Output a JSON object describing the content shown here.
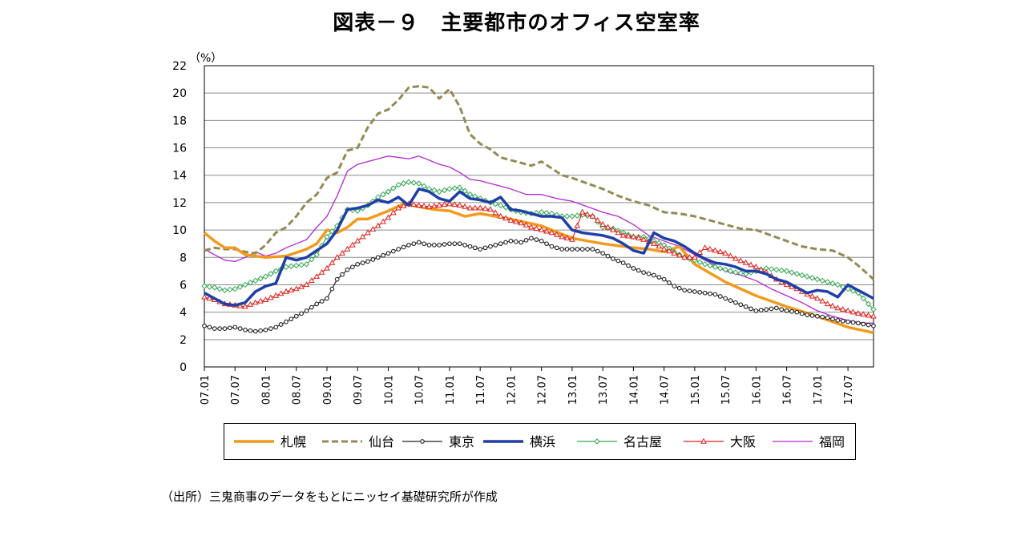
{
  "chart_data": {
    "type": "line",
    "title": "図表－９　主要都市のオフィス空室率",
    "ylabel": "（%）",
    "xlabel": "",
    "ylim": [
      0,
      22
    ],
    "yticks": [
      0,
      2,
      4,
      6,
      8,
      10,
      12,
      14,
      16,
      18,
      20,
      22
    ],
    "xlim": [
      2007.0,
      2017.917
    ],
    "xticks": [
      "07.01",
      "07.07",
      "08.01",
      "08.07",
      "09.01",
      "09.07",
      "10.01",
      "10.07",
      "11.01",
      "11.07",
      "12.01",
      "12.07",
      "13.01",
      "13.07",
      "14.01",
      "14.07",
      "15.01",
      "15.07",
      "16.01",
      "16.07",
      "17.01",
      "17.07"
    ],
    "grid": "horizontal",
    "legend_position": "bottom",
    "series": [
      {
        "name": "札幌",
        "color": "#f29a1d",
        "style": "thick",
        "x": [
          "07.01",
          "07.03",
          "07.05",
          "07.07",
          "07.09",
          "08.01",
          "08.05",
          "08.09",
          "08.11",
          "09.01",
          "09.03",
          "09.05",
          "09.07",
          "09.09",
          "10.01",
          "10.04",
          "10.07",
          "10.10",
          "11.01",
          "11.04",
          "11.07",
          "11.10",
          "12.01",
          "12.07",
          "13.01",
          "13.07",
          "14.01",
          "14.04",
          "14.07",
          "14.10",
          "15.01",
          "15.07",
          "16.01",
          "16.07",
          "17.01",
          "17.07",
          "17.12"
        ],
        "y": [
          9.8,
          9.2,
          8.7,
          8.7,
          8.2,
          8.0,
          8.1,
          8.6,
          9.0,
          10.0,
          9.8,
          10.2,
          10.8,
          10.8,
          11.4,
          11.9,
          11.7,
          11.5,
          11.4,
          11.0,
          11.2,
          11.0,
          10.8,
          10.3,
          9.4,
          9.0,
          8.7,
          8.6,
          8.4,
          8.8,
          7.5,
          6.2,
          5.2,
          4.4,
          3.7,
          2.9,
          2.5
        ]
      },
      {
        "name": "仙台",
        "color": "#948a54",
        "style": "dashed",
        "x": [
          "07.01",
          "07.03",
          "07.05",
          "07.07",
          "07.09",
          "07.11",
          "08.01",
          "08.03",
          "08.05",
          "08.07",
          "08.09",
          "08.11",
          "09.01",
          "09.03",
          "09.05",
          "09.07",
          "09.09",
          "09.11",
          "10.01",
          "10.03",
          "10.05",
          "10.07",
          "10.09",
          "10.11",
          "11.01",
          "11.03",
          "11.05",
          "11.07",
          "11.09",
          "11.11",
          "12.01",
          "12.03",
          "12.05",
          "12.07",
          "12.09",
          "12.11",
          "13.01",
          "13.04",
          "13.07",
          "13.10",
          "14.01",
          "14.04",
          "14.07",
          "14.10",
          "15.01",
          "15.04",
          "15.07",
          "15.10",
          "16.01",
          "16.04",
          "16.07",
          "16.10",
          "17.01",
          "17.04",
          "17.07",
          "17.09",
          "17.12"
        ],
        "y": [
          8.5,
          8.7,
          8.6,
          8.6,
          8.4,
          8.3,
          8.9,
          9.8,
          10.2,
          11.0,
          12.0,
          12.6,
          13.8,
          14.2,
          15.8,
          16.0,
          17.5,
          18.5,
          18.8,
          19.5,
          20.4,
          20.5,
          20.4,
          19.6,
          20.3,
          19.0,
          17.0,
          16.3,
          15.9,
          15.3,
          15.1,
          14.9,
          14.7,
          15.0,
          14.5,
          14.0,
          13.8,
          13.4,
          13.0,
          12.5,
          12.1,
          11.8,
          11.3,
          11.2,
          11.0,
          10.7,
          10.4,
          10.1,
          10.0,
          9.6,
          9.2,
          8.8,
          8.6,
          8.5,
          8.0,
          7.4,
          6.4
        ]
      },
      {
        "name": "東京",
        "color": "#222222",
        "style": "circle",
        "x": [
          "07.01",
          "07.03",
          "07.05",
          "07.07",
          "07.09",
          "07.11",
          "08.01",
          "08.03",
          "08.05",
          "08.07",
          "08.09",
          "08.11",
          "09.01",
          "09.03",
          "09.05",
          "09.07",
          "09.09",
          "09.11",
          "10.01",
          "10.03",
          "10.05",
          "10.07",
          "10.09",
          "10.11",
          "11.01",
          "11.03",
          "11.05",
          "11.07",
          "11.09",
          "11.11",
          "12.01",
          "12.03",
          "12.05",
          "12.07",
          "12.09",
          "12.11",
          "13.01",
          "13.03",
          "13.05",
          "13.07",
          "13.09",
          "13.11",
          "14.01",
          "14.03",
          "14.05",
          "14.07",
          "14.09",
          "14.11",
          "15.01",
          "15.03",
          "15.05",
          "15.07",
          "15.09",
          "15.11",
          "16.01",
          "16.03",
          "16.05",
          "16.07",
          "16.09",
          "16.11",
          "17.01",
          "17.03",
          "17.05",
          "17.07",
          "17.09",
          "17.12"
        ],
        "y": [
          3.0,
          2.8,
          2.8,
          2.9,
          2.7,
          2.6,
          2.7,
          2.9,
          3.3,
          3.7,
          4.1,
          4.6,
          5.0,
          6.4,
          7.1,
          7.5,
          7.7,
          8.0,
          8.3,
          8.6,
          8.9,
          9.1,
          8.9,
          8.9,
          9.0,
          9.0,
          8.8,
          8.6,
          8.8,
          9.0,
          9.2,
          9.1,
          9.4,
          9.2,
          8.8,
          8.6,
          8.6,
          8.6,
          8.6,
          8.3,
          7.9,
          7.6,
          7.2,
          6.9,
          6.7,
          6.4,
          5.9,
          5.6,
          5.5,
          5.4,
          5.3,
          5.0,
          4.7,
          4.4,
          4.1,
          4.2,
          4.3,
          4.1,
          4.0,
          3.8,
          3.7,
          3.6,
          3.4,
          3.3,
          3.2,
          3.0
        ]
      },
      {
        "name": "横浜",
        "color": "#1f3fa8",
        "style": "thick",
        "x": [
          "07.01",
          "07.03",
          "07.05",
          "07.07",
          "07.09",
          "07.11",
          "08.01",
          "08.03",
          "08.05",
          "08.07",
          "08.09",
          "08.11",
          "09.01",
          "09.03",
          "09.05",
          "09.07",
          "09.09",
          "09.11",
          "10.01",
          "10.03",
          "10.05",
          "10.07",
          "10.09",
          "10.11",
          "11.01",
          "11.03",
          "11.05",
          "11.07",
          "11.09",
          "11.11",
          "12.01",
          "12.03",
          "12.05",
          "12.07",
          "12.09",
          "12.11",
          "13.01",
          "13.03",
          "13.05",
          "13.07",
          "13.09",
          "13.11",
          "14.01",
          "14.03",
          "14.05",
          "14.07",
          "14.09",
          "14.11",
          "15.01",
          "15.03",
          "15.05",
          "15.07",
          "15.09",
          "15.11",
          "16.01",
          "16.03",
          "16.05",
          "16.07",
          "16.09",
          "16.11",
          "17.01",
          "17.03",
          "17.05",
          "17.07",
          "17.09",
          "17.12"
        ],
        "y": [
          5.4,
          5.0,
          4.6,
          4.5,
          4.7,
          5.5,
          5.9,
          6.1,
          8.0,
          7.8,
          8.0,
          8.5,
          9.0,
          10.0,
          11.5,
          11.6,
          11.8,
          12.2,
          12.0,
          12.4,
          11.8,
          13.0,
          12.8,
          12.3,
          12.1,
          12.8,
          12.3,
          12.2,
          12.0,
          12.4,
          11.5,
          11.4,
          11.2,
          11.0,
          11.0,
          10.9,
          10.0,
          9.8,
          9.7,
          9.6,
          9.4,
          9.0,
          8.5,
          8.3,
          9.8,
          9.4,
          9.2,
          8.8,
          8.3,
          7.9,
          7.6,
          7.5,
          7.3,
          7.0,
          7.0,
          6.8,
          6.4,
          6.2,
          5.8,
          5.4,
          5.6,
          5.5,
          5.1,
          6.0,
          5.6,
          5.0
        ]
      },
      {
        "name": "名古屋",
        "color": "#33a852",
        "style": "diamond",
        "x": [
          "07.01",
          "07.03",
          "07.05",
          "07.07",
          "07.09",
          "07.11",
          "08.01",
          "08.03",
          "08.05",
          "08.07",
          "08.09",
          "08.11",
          "09.01",
          "09.03",
          "09.05",
          "09.07",
          "09.09",
          "09.11",
          "10.01",
          "10.03",
          "10.05",
          "10.07",
          "10.09",
          "10.11",
          "11.01",
          "11.03",
          "11.05",
          "11.07",
          "11.09",
          "11.11",
          "12.01",
          "12.03",
          "12.05",
          "12.07",
          "12.09",
          "12.11",
          "13.01",
          "13.03",
          "13.05",
          "13.07",
          "13.09",
          "13.11",
          "14.01",
          "14.03",
          "14.05",
          "14.07",
          "14.09",
          "14.11",
          "15.01",
          "15.03",
          "15.05",
          "15.07",
          "15.09",
          "15.11",
          "16.01",
          "16.03",
          "16.05",
          "16.07",
          "16.09",
          "16.11",
          "17.01",
          "17.03",
          "17.05",
          "17.07",
          "17.09",
          "17.12"
        ],
        "y": [
          5.9,
          5.8,
          5.6,
          5.7,
          6.0,
          6.3,
          6.6,
          7.0,
          7.3,
          7.4,
          7.5,
          8.2,
          9.5,
          10.3,
          11.5,
          11.4,
          11.8,
          12.4,
          12.8,
          13.3,
          13.5,
          13.4,
          13.0,
          12.8,
          13.0,
          13.1,
          12.6,
          12.3,
          12.0,
          11.8,
          11.5,
          11.3,
          11.2,
          11.3,
          11.2,
          11.0,
          11.0,
          11.1,
          11.0,
          10.2,
          10.1,
          9.8,
          9.5,
          9.5,
          9.2,
          8.9,
          8.4,
          8.0,
          7.8,
          7.5,
          7.3,
          7.1,
          6.9,
          6.8,
          7.0,
          7.2,
          7.1,
          7.0,
          6.8,
          6.6,
          6.4,
          6.2,
          6.0,
          5.7,
          5.4,
          4.2
        ]
      },
      {
        "name": "大阪",
        "color": "#e0201b",
        "style": "triangle",
        "x": [
          "07.01",
          "07.03",
          "07.05",
          "07.07",
          "07.09",
          "07.11",
          "08.01",
          "08.03",
          "08.05",
          "08.07",
          "08.09",
          "08.11",
          "09.01",
          "09.03",
          "09.05",
          "09.07",
          "09.09",
          "09.11",
          "10.01",
          "10.03",
          "10.05",
          "10.07",
          "10.09",
          "10.11",
          "11.01",
          "11.03",
          "11.05",
          "11.07",
          "11.09",
          "11.11",
          "12.01",
          "12.03",
          "12.05",
          "12.07",
          "12.09",
          "12.11",
          "13.01",
          "13.03",
          "13.05",
          "13.07",
          "13.09",
          "13.11",
          "14.01",
          "14.03",
          "14.05",
          "14.07",
          "14.09",
          "14.11",
          "15.01",
          "15.03",
          "15.05",
          "15.07",
          "15.09",
          "15.11",
          "16.01",
          "16.03",
          "16.05",
          "16.07",
          "16.09",
          "16.11",
          "17.01",
          "17.03",
          "17.05",
          "17.07",
          "17.09",
          "17.12"
        ],
        "y": [
          5.1,
          4.9,
          4.6,
          4.5,
          4.4,
          4.7,
          4.9,
          5.2,
          5.5,
          5.7,
          6.0,
          6.6,
          7.2,
          8.0,
          8.6,
          9.2,
          9.8,
          10.3,
          10.9,
          11.6,
          11.9,
          11.8,
          11.7,
          11.8,
          11.9,
          11.8,
          11.6,
          11.6,
          11.5,
          11.0,
          10.7,
          10.5,
          10.2,
          10.0,
          9.8,
          9.5,
          9.3,
          11.3,
          11.0,
          10.4,
          10.0,
          9.6,
          9.5,
          9.3,
          9.0,
          8.6,
          8.3,
          8.0,
          8.0,
          8.7,
          8.5,
          8.3,
          7.9,
          7.6,
          7.3,
          6.9,
          6.4,
          6.0,
          5.7,
          5.3,
          5.0,
          4.6,
          4.3,
          4.1,
          3.9,
          3.7
        ]
      },
      {
        "name": "福岡",
        "color": "#b526d4",
        "style": "thin",
        "x": [
          "07.01",
          "07.03",
          "07.05",
          "07.07",
          "07.09",
          "07.11",
          "08.01",
          "08.03",
          "08.05",
          "08.07",
          "08.09",
          "08.11",
          "09.01",
          "09.03",
          "09.05",
          "09.07",
          "09.09",
          "09.11",
          "10.01",
          "10.03",
          "10.05",
          "10.07",
          "10.09",
          "10.11",
          "11.01",
          "11.03",
          "11.05",
          "11.07",
          "11.09",
          "11.11",
          "12.01",
          "12.04",
          "12.07",
          "12.10",
          "13.01",
          "13.04",
          "13.07",
          "13.10",
          "14.01",
          "14.04",
          "14.07",
          "14.10",
          "15.01",
          "15.04",
          "15.07",
          "15.10",
          "16.01",
          "16.04",
          "16.07",
          "16.10",
          "17.01",
          "17.04",
          "17.07",
          "17.10",
          "17.12"
        ],
        "y": [
          8.6,
          8.2,
          7.8,
          7.7,
          8.0,
          8.4,
          8.1,
          8.3,
          8.7,
          9.0,
          9.3,
          10.2,
          11.0,
          12.5,
          14.3,
          14.8,
          15.0,
          15.2,
          15.4,
          15.3,
          15.2,
          15.4,
          15.1,
          14.8,
          14.6,
          14.2,
          13.7,
          13.6,
          13.4,
          13.2,
          13.0,
          12.6,
          12.6,
          12.3,
          12.1,
          11.7,
          11.3,
          11.0,
          10.4,
          9.6,
          9.2,
          8.8,
          8.2,
          7.6,
          7.0,
          6.7,
          6.3,
          5.7,
          5.2,
          4.7,
          4.1,
          3.7,
          3.4,
          3.2,
          3.2
        ]
      }
    ]
  },
  "source_note": "（出所）三鬼商事のデータをもとにニッセイ基礎研究所が作成"
}
